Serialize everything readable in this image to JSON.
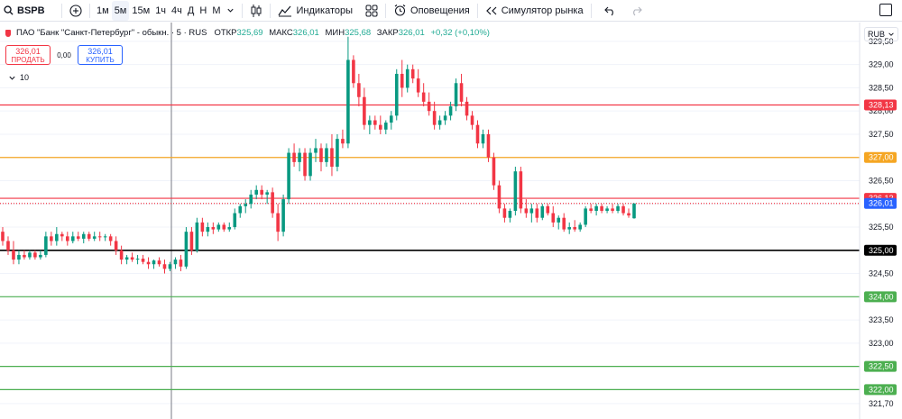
{
  "toolbar": {
    "symbol": "BSPB",
    "intervals": [
      "1м",
      "5м",
      "15м",
      "1ч",
      "4ч",
      "Д",
      "Н",
      "М"
    ],
    "active_interval": "5м",
    "indicators_label": "Индикаторы",
    "alerts_label": "Оповещения",
    "replay_label": "Симулятор рынка"
  },
  "legend": {
    "title": "ПАО \"Банк \"Санкт-Петербург\" - обыкн. · 5 · RUS",
    "open_label": "ОТКР",
    "open": "325,69",
    "high_label": "МАКС",
    "high": "326,01",
    "low_label": "МИН",
    "low": "325,68",
    "close_label": "ЗАКР",
    "close": "326,01",
    "change": "+0,32 (+0,10%)"
  },
  "trade": {
    "sell_price": "326,01",
    "sell_label": "ПРОДАТЬ",
    "spread": "0,00",
    "buy_price": "326,01",
    "buy_label": "КУПИТЬ"
  },
  "volume": {
    "value": "10"
  },
  "currency": "RUB",
  "chart_data": {
    "type": "candlestick",
    "y_ticks": [
      "329,50",
      "329,00",
      "328,50",
      "328,00",
      "327,50",
      "327,00",
      "326,50",
      "326,00",
      "325,50",
      "325,00",
      "324,50",
      "324,00",
      "323,50",
      "323,00",
      "322,50",
      "322,00",
      "321,70"
    ],
    "ylim": [
      321.6,
      329.75
    ],
    "levels": [
      {
        "value": 328.13,
        "label": "328,13",
        "color": "#f23645"
      },
      {
        "value": 327.0,
        "label": "327,00",
        "color": "#f5a623"
      },
      {
        "value": 326.12,
        "label": "326,12",
        "color": "#f23645"
      },
      {
        "value": 326.01,
        "label": "326,01",
        "color": "#2962ff"
      },
      {
        "value": 325.0,
        "label": "325,00",
        "color": "#000000"
      },
      {
        "value": 324.0,
        "label": "324,00",
        "color": "#4caf50"
      },
      {
        "value": 322.5,
        "label": "322,50",
        "color": "#4caf50"
      },
      {
        "value": 322.0,
        "label": "322,00",
        "color": "#4caf50"
      }
    ],
    "up_color": "#089981",
    "down_color": "#f23645",
    "candles": [
      [
        325.4,
        325.5,
        325.1,
        325.2
      ],
      [
        325.2,
        325.3,
        324.9,
        325.0
      ],
      [
        325.0,
        325.2,
        324.7,
        324.8
      ],
      [
        324.8,
        325.0,
        324.7,
        324.9
      ],
      [
        324.9,
        325.0,
        324.8,
        324.85
      ],
      [
        324.85,
        325.0,
        324.8,
        324.95
      ],
      [
        324.95,
        325.0,
        324.8,
        324.85
      ],
      [
        324.85,
        325.0,
        324.8,
        324.9
      ],
      [
        324.9,
        325.4,
        324.85,
        325.3
      ],
      [
        325.3,
        325.4,
        325.1,
        325.2
      ],
      [
        325.2,
        325.5,
        325.1,
        325.35
      ],
      [
        325.35,
        325.4,
        325.2,
        325.3
      ],
      [
        325.3,
        325.4,
        325.1,
        325.2
      ],
      [
        325.2,
        325.4,
        325.15,
        325.3
      ],
      [
        325.3,
        325.4,
        325.2,
        325.25
      ],
      [
        325.25,
        325.4,
        325.15,
        325.35
      ],
      [
        325.35,
        325.4,
        325.2,
        325.25
      ],
      [
        325.25,
        325.4,
        325.2,
        325.3
      ],
      [
        325.3,
        325.4,
        325.2,
        325.28
      ],
      [
        325.28,
        325.35,
        325.2,
        325.3
      ],
      [
        325.3,
        325.35,
        325.1,
        325.2
      ],
      [
        325.2,
        325.3,
        324.9,
        325.0
      ],
      [
        325.0,
        325.1,
        324.7,
        324.8
      ],
      [
        324.8,
        324.9,
        324.7,
        324.85
      ],
      [
        324.85,
        324.95,
        324.75,
        324.8
      ],
      [
        324.8,
        324.9,
        324.7,
        324.82
      ],
      [
        324.82,
        324.9,
        324.7,
        324.75
      ],
      [
        324.75,
        324.85,
        324.6,
        324.7
      ],
      [
        324.7,
        324.8,
        324.6,
        324.78
      ],
      [
        324.78,
        324.85,
        324.65,
        324.7
      ],
      [
        324.7,
        324.8,
        324.5,
        324.6
      ],
      [
        324.6,
        324.75,
        324.55,
        324.7
      ],
      [
        324.7,
        324.85,
        324.6,
        324.8
      ],
      [
        324.8,
        324.9,
        324.55,
        324.65
      ],
      [
        324.65,
        325.5,
        324.6,
        325.4
      ],
      [
        325.4,
        325.5,
        324.9,
        325.0
      ],
      [
        325.0,
        325.7,
        324.95,
        325.6
      ],
      [
        325.6,
        325.7,
        325.3,
        325.4
      ],
      [
        325.4,
        325.6,
        325.3,
        325.5
      ],
      [
        325.5,
        325.6,
        325.35,
        325.45
      ],
      [
        325.45,
        325.6,
        325.4,
        325.55
      ],
      [
        325.55,
        325.6,
        325.4,
        325.45
      ],
      [
        325.45,
        325.6,
        325.4,
        325.5
      ],
      [
        325.5,
        325.9,
        325.45,
        325.8
      ],
      [
        325.8,
        326.0,
        325.7,
        325.95
      ],
      [
        325.95,
        326.1,
        325.8,
        326.0
      ],
      [
        326.0,
        326.3,
        325.9,
        326.2
      ],
      [
        326.2,
        326.4,
        326.1,
        326.3
      ],
      [
        326.3,
        326.4,
        326.1,
        326.2
      ],
      [
        326.2,
        326.3,
        326.0,
        326.25
      ],
      [
        326.25,
        326.35,
        325.7,
        325.8
      ],
      [
        325.8,
        326.0,
        325.2,
        325.4
      ],
      [
        325.4,
        326.2,
        325.3,
        326.1
      ],
      [
        326.1,
        327.2,
        326.0,
        327.1
      ],
      [
        327.1,
        327.3,
        326.8,
        326.9
      ],
      [
        326.9,
        327.2,
        326.7,
        327.1
      ],
      [
        327.1,
        327.2,
        326.5,
        326.6
      ],
      [
        326.6,
        327.2,
        326.5,
        327.1
      ],
      [
        327.1,
        327.4,
        326.9,
        327.2
      ],
      [
        327.2,
        327.3,
        326.7,
        326.9
      ],
      [
        326.9,
        327.3,
        326.8,
        327.2
      ],
      [
        327.2,
        327.5,
        326.6,
        326.8
      ],
      [
        326.8,
        327.5,
        326.7,
        327.4
      ],
      [
        327.4,
        327.6,
        327.2,
        327.3
      ],
      [
        327.3,
        329.6,
        327.2,
        329.1
      ],
      [
        329.1,
        329.2,
        328.5,
        328.6
      ],
      [
        328.6,
        328.8,
        328.1,
        328.3
      ],
      [
        328.3,
        328.5,
        327.6,
        327.7
      ],
      [
        327.7,
        327.9,
        327.5,
        327.8
      ],
      [
        327.8,
        327.9,
        327.6,
        327.7
      ],
      [
        327.7,
        327.9,
        327.5,
        327.6
      ],
      [
        327.6,
        327.8,
        327.5,
        327.75
      ],
      [
        327.75,
        328.0,
        327.6,
        327.9
      ],
      [
        327.9,
        328.9,
        327.8,
        328.8
      ],
      [
        328.8,
        329.1,
        328.3,
        328.5
      ],
      [
        328.5,
        329.0,
        328.4,
        328.9
      ],
      [
        328.9,
        329.0,
        328.6,
        328.7
      ],
      [
        328.7,
        328.9,
        328.3,
        328.4
      ],
      [
        328.4,
        328.6,
        328.1,
        328.2
      ],
      [
        328.2,
        328.4,
        327.9,
        328.0
      ],
      [
        328.0,
        328.2,
        327.6,
        327.7
      ],
      [
        327.7,
        327.9,
        327.6,
        327.8
      ],
      [
        327.8,
        328.0,
        327.7,
        327.9
      ],
      [
        327.9,
        328.2,
        327.8,
        328.1
      ],
      [
        328.1,
        328.7,
        328.0,
        328.6
      ],
      [
        328.6,
        328.8,
        328.1,
        328.2
      ],
      [
        328.2,
        328.3,
        327.8,
        327.9
      ],
      [
        327.9,
        328.0,
        327.6,
        327.7
      ],
      [
        327.7,
        327.8,
        327.2,
        327.3
      ],
      [
        327.3,
        327.6,
        327.2,
        327.5
      ],
      [
        327.5,
        327.6,
        326.9,
        327.0
      ],
      [
        327.0,
        327.1,
        326.3,
        326.4
      ],
      [
        326.4,
        326.5,
        325.8,
        325.9
      ],
      [
        325.9,
        326.0,
        325.6,
        325.7
      ],
      [
        325.7,
        325.9,
        325.6,
        325.85
      ],
      [
        325.85,
        326.8,
        325.75,
        326.7
      ],
      [
        326.7,
        326.8,
        325.8,
        325.9
      ],
      [
        325.9,
        326.1,
        325.7,
        325.8
      ],
      [
        325.8,
        326.0,
        325.6,
        325.9
      ],
      [
        325.9,
        326.0,
        325.6,
        325.7
      ],
      [
        325.7,
        326.0,
        325.65,
        325.95
      ],
      [
        325.95,
        326.0,
        325.75,
        325.8
      ],
      [
        325.8,
        325.95,
        325.5,
        325.6
      ],
      [
        325.6,
        325.75,
        325.45,
        325.7
      ],
      [
        325.7,
        325.8,
        325.4,
        325.45
      ],
      [
        325.45,
        325.6,
        325.35,
        325.5
      ],
      [
        325.5,
        325.65,
        325.4,
        325.45
      ],
      [
        325.45,
        325.6,
        325.4,
        325.55
      ],
      [
        325.55,
        325.95,
        325.5,
        325.9
      ],
      [
        325.9,
        326.0,
        325.8,
        325.85
      ],
      [
        325.85,
        326.0,
        325.75,
        325.95
      ],
      [
        325.95,
        326.0,
        325.8,
        325.85
      ],
      [
        325.85,
        325.95,
        325.8,
        325.9
      ],
      [
        325.9,
        326.0,
        325.8,
        325.85
      ],
      [
        325.85,
        326.0,
        325.8,
        325.95
      ],
      [
        325.95,
        326.0,
        325.75,
        325.8
      ],
      [
        325.8,
        325.9,
        325.7,
        325.75
      ],
      [
        325.69,
        326.01,
        325.68,
        326.01
      ]
    ]
  }
}
